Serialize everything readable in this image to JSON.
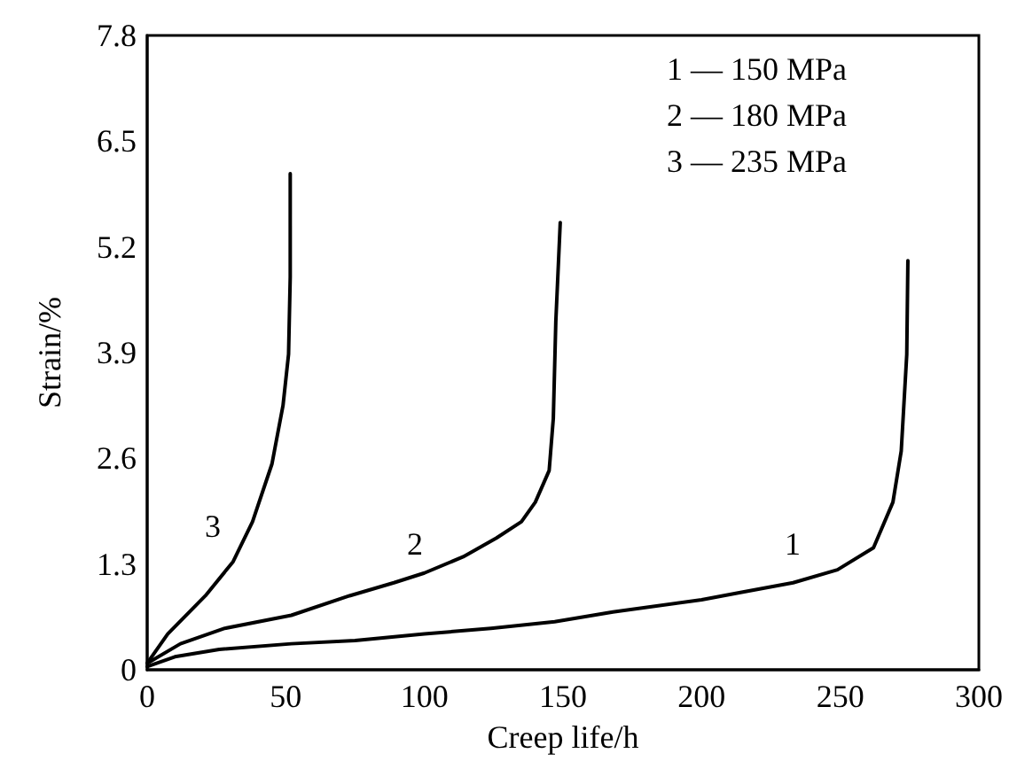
{
  "chart_data": {
    "type": "line",
    "xlabel": "Creep life/h",
    "ylabel": "Strain/%",
    "xlim": [
      0,
      300
    ],
    "xticks": [
      0,
      50,
      100,
      150,
      200,
      250,
      300
    ],
    "ylim": [
      0,
      7.8
    ],
    "yticks": [
      0,
      1.3,
      2.6,
      3.9,
      5.2,
      6.5,
      7.8
    ],
    "grid": false,
    "marker": "none",
    "line_style": "solid",
    "annotations": [
      "1 — 150 MPa",
      "2 — 180 MPa",
      "3 — 235 MPa",
      "1",
      "2",
      "3"
    ],
    "series": [
      {
        "color": "#000000",
        "x": [
          0,
          10,
          26,
          52,
          75,
          100,
          124,
          147,
          168,
          200,
          214,
          233,
          249,
          262,
          269,
          272,
          274,
          274.4
        ],
        "values": [
          0.04,
          0.16,
          0.25,
          0.32,
          0.36,
          0.44,
          0.51,
          0.59,
          0.71,
          0.86,
          0.95,
          1.07,
          1.23,
          1.5,
          2.06,
          2.69,
          3.88,
          5.03
        ]
      },
      {
        "color": "#000000",
        "x": [
          0,
          12,
          28,
          52,
          73,
          89,
          100,
          114,
          126,
          135,
          140,
          145,
          146.5,
          147.4,
          149
        ],
        "values": [
          0.08,
          0.32,
          0.51,
          0.67,
          0.91,
          1.07,
          1.19,
          1.39,
          1.62,
          1.82,
          2.06,
          2.45,
          3.09,
          4.28,
          5.5
        ]
      },
      {
        "color": "#000000",
        "x": [
          0,
          7.4,
          21,
          31,
          38,
          45,
          49,
          51,
          51.6,
          51.6
        ],
        "values": [
          0.08,
          0.44,
          0.91,
          1.33,
          1.82,
          2.53,
          3.25,
          3.88,
          4.83,
          6.1
        ]
      }
    ]
  }
}
